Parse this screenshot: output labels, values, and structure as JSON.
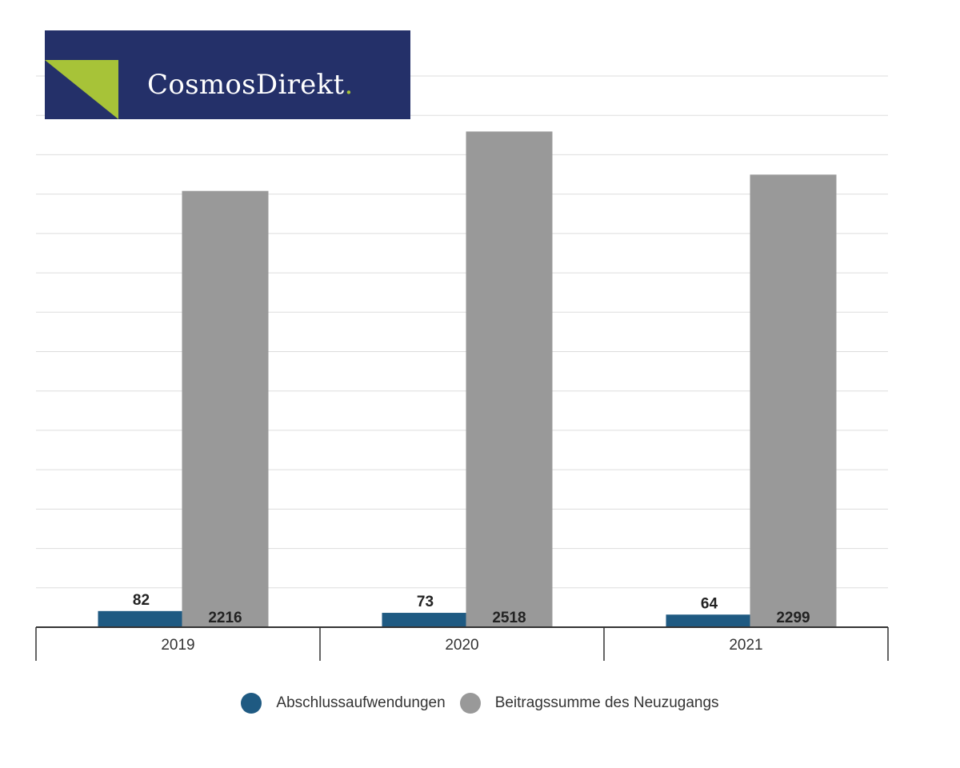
{
  "brand": {
    "name": "CosmosDirekt",
    "dot": "."
  },
  "colors": {
    "brand_navy": "#243069",
    "brand_green": "#a7c338",
    "bar_blue": "#1f5a82",
    "bar_gray": "#999999"
  },
  "chart_data": {
    "type": "bar",
    "categories": [
      "2019",
      "2020",
      "2021"
    ],
    "series": [
      {
        "name": "Abschlussaufwendungen",
        "values": [
          82,
          73,
          64
        ],
        "color": "#1f5a82"
      },
      {
        "name": "Beitragssumme des Neuzugangs",
        "values": [
          2216,
          2518,
          2299
        ],
        "color": "#999999"
      }
    ],
    "ylim": [
      0,
      2800
    ],
    "grid": true,
    "legend": "bottom-center",
    "data_labels": true
  }
}
